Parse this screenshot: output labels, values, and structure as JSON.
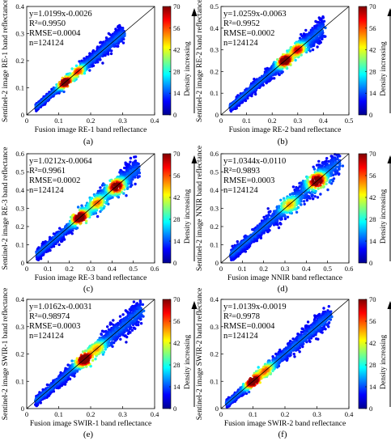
{
  "figure": {
    "colorbar_label": "Density increasing",
    "colorbar_ticks": [
      0,
      14,
      28,
      42,
      56,
      70
    ]
  },
  "chart_data": [
    {
      "type": "scatter",
      "panel": "(a)",
      "xlabel": "Fusion image RE-1 band reflectance",
      "ylabel": "Sentinel-2 image RE-1 band reflectance",
      "xlim": [
        0,
        0.4
      ],
      "ylim": [
        0,
        0.4
      ],
      "xticks": [
        "0",
        "0.1",
        "0.2",
        "0.3",
        "0.4"
      ],
      "yticks": [
        "0",
        "0.1",
        "0.2",
        "0.3",
        "0.4"
      ],
      "stats": [
        "y=1.0199x-0.0026",
        "R²=0.9950",
        "RMSE=0.0004",
        "n=124124"
      ],
      "fit": {
        "slope": 1.0199,
        "intercept": -0.0026
      },
      "cloud": {
        "start": 0.03,
        "end": 0.3,
        "width": 0.01
      },
      "hotspots": [
        {
          "x": 0.12,
          "y": 0.12,
          "density": 70
        },
        {
          "x": 0.16,
          "y": 0.16,
          "density": 45
        }
      ]
    },
    {
      "type": "scatter",
      "panel": "(b)",
      "xlabel": "Fusion image RE-2 band reflectance",
      "ylabel": "Sentinel-2 image RE-2 band reflectance",
      "xlim": [
        0,
        0.5
      ],
      "ylim": [
        0,
        0.5
      ],
      "xticks": [
        "0",
        "0.1",
        "0.2",
        "0.3",
        "0.4",
        "0.5"
      ],
      "yticks": [
        "0",
        "0.1",
        "0.2",
        "0.3",
        "0.4",
        "0.5"
      ],
      "stats": [
        "y=1.0259x-0.0063",
        "R²=0.9952",
        "RMSE=0.0002",
        "n=124124"
      ],
      "fit": {
        "slope": 1.0259,
        "intercept": -0.0063
      },
      "cloud": {
        "start": 0.04,
        "end": 0.4,
        "width": 0.016
      },
      "hotspots": [
        {
          "x": 0.25,
          "y": 0.25,
          "density": 70
        },
        {
          "x": 0.3,
          "y": 0.3,
          "density": 50
        }
      ]
    },
    {
      "type": "scatter",
      "panel": "(c)",
      "xlabel": "Fusion image RE-3 band reflectance",
      "ylabel": "Sentinel-2 image RE-3 band reflectance",
      "xlim": [
        0,
        0.6
      ],
      "ylim": [
        0,
        0.6
      ],
      "xticks": [
        "0",
        "0.1",
        "0.2",
        "0.3",
        "0.4",
        "0.5",
        "0.6"
      ],
      "yticks": [
        "0",
        "0.1",
        "0.2",
        "0.3",
        "0.4",
        "0.5",
        "0.6"
      ],
      "stats": [
        "y=1.0212x-0.0064",
        "R²=0.9961",
        "RMSE=0.0002",
        "n=124124"
      ],
      "fit": {
        "slope": 1.0212,
        "intercept": -0.0064
      },
      "cloud": {
        "start": 0.05,
        "end": 0.52,
        "width": 0.022
      },
      "hotspots": [
        {
          "x": 0.25,
          "y": 0.25,
          "density": 70
        },
        {
          "x": 0.42,
          "y": 0.42,
          "density": 65
        },
        {
          "x": 0.33,
          "y": 0.33,
          "density": 40
        }
      ]
    },
    {
      "type": "scatter",
      "panel": "(d)",
      "xlabel": "Fusion image NNIR band reflectance",
      "ylabel": "Sentinel-2 image NNIR band reflectance",
      "xlim": [
        0,
        0.6
      ],
      "ylim": [
        0,
        0.6
      ],
      "xticks": [
        "0",
        "0.1",
        "0.2",
        "0.3",
        "0.4",
        "0.5",
        "0.6"
      ],
      "yticks": [
        "0",
        "0.1",
        "0.2",
        "0.3",
        "0.4",
        "0.5",
        "0.6"
      ],
      "stats": [
        "y=1.0344x-0.0110",
        "R²=0.9893",
        "RMSE=0.0003",
        "n=124124"
      ],
      "fit": {
        "slope": 1.0344,
        "intercept": -0.011
      },
      "cloud": {
        "start": 0.05,
        "end": 0.55,
        "width": 0.026
      },
      "hotspots": [
        {
          "x": 0.45,
          "y": 0.45,
          "density": 70
        },
        {
          "x": 0.32,
          "y": 0.32,
          "density": 35
        }
      ]
    },
    {
      "type": "scatter",
      "panel": "(e)",
      "xlabel": "Fusion image SWIR-1 band reflectance",
      "ylabel": "Sentinel-2 image SWIR-1 band reflectance",
      "xlim": [
        0,
        0.4
      ],
      "ylim": [
        0,
        0.4
      ],
      "xticks": [
        "0",
        "0.1",
        "0.2",
        "0.3",
        "0.4"
      ],
      "yticks": [
        "0",
        "0.1",
        "0.2",
        "0.3",
        "0.4"
      ],
      "stats": [
        "y=1.0162x-0.0031",
        "R²=0.98974",
        "RMSE=0.0003",
        "n=124124"
      ],
      "fit": {
        "slope": 1.0162,
        "intercept": -0.0031
      },
      "cloud": {
        "start": 0.03,
        "end": 0.36,
        "width": 0.014
      },
      "hotspots": [
        {
          "x": 0.18,
          "y": 0.18,
          "density": 70
        },
        {
          "x": 0.22,
          "y": 0.22,
          "density": 35
        }
      ]
    },
    {
      "type": "scatter",
      "panel": "(f)",
      "xlabel": "Fusion image SWIR-2 band reflectance",
      "ylabel": "Sentinel-2 image SWIR-2 band reflectance",
      "xlim": [
        0,
        0.4
      ],
      "ylim": [
        0,
        0.4
      ],
      "xticks": [
        "0",
        "0.1",
        "0.2",
        "0.3",
        "0.4"
      ],
      "yticks": [
        "0",
        "0.1",
        "0.2",
        "0.3",
        "0.4"
      ],
      "stats": [
        "y=1.0139x-0.0019",
        "R²=0.9978",
        "RMSE=0.0004",
        "n=124124"
      ],
      "fit": {
        "slope": 1.0139,
        "intercept": -0.0019
      },
      "cloud": {
        "start": 0.02,
        "end": 0.34,
        "width": 0.012
      },
      "hotspots": [
        {
          "x": 0.1,
          "y": 0.1,
          "density": 70
        },
        {
          "x": 0.14,
          "y": 0.14,
          "density": 40
        }
      ]
    }
  ]
}
